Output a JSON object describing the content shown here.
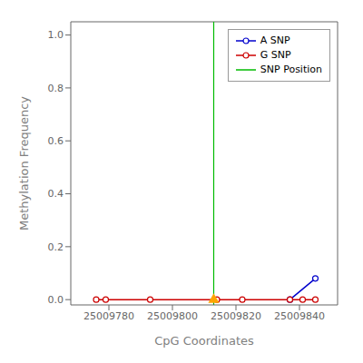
{
  "chart_data": {
    "type": "line",
    "xlabel": "CpG Coordinates",
    "ylabel": "Methylation Frequency",
    "xlim": [
      25009768,
      25009852
    ],
    "ylim": [
      -0.02,
      1.05
    ],
    "xticks": [
      25009780,
      25009800,
      25009820,
      25009840
    ],
    "yticks": [
      {
        "value": 0.0,
        "label": "0.0"
      },
      0.2,
      0.4,
      0.6,
      0.8,
      {
        "value": 1.0,
        "label": "1.0"
      }
    ],
    "grid": false,
    "legend": "upper right",
    "series": [
      {
        "name": "A SNP",
        "type": "line",
        "color": "#0000CC",
        "marker": "circle",
        "x": [
          25009837,
          25009845
        ],
        "values": [
          0.0,
          0.08
        ]
      },
      {
        "name": "G SNP",
        "type": "line",
        "color": "#CC0000",
        "marker": "circle",
        "x": [
          25009776,
          25009779,
          25009793,
          25009814,
          25009822,
          25009837,
          25009841,
          25009845
        ],
        "values": [
          0.0,
          0.0,
          0.0,
          0.0,
          0.0,
          0.0,
          0.0,
          0.0
        ]
      },
      {
        "name": "SNP Position",
        "type": "vline",
        "color": "#00BB00",
        "x": [
          25009813
        ]
      },
      {
        "type": "scatter",
        "color": "#FFA500",
        "marker": "triangle",
        "x": [
          25009813
        ],
        "values": [
          0.0
        ]
      }
    ]
  }
}
